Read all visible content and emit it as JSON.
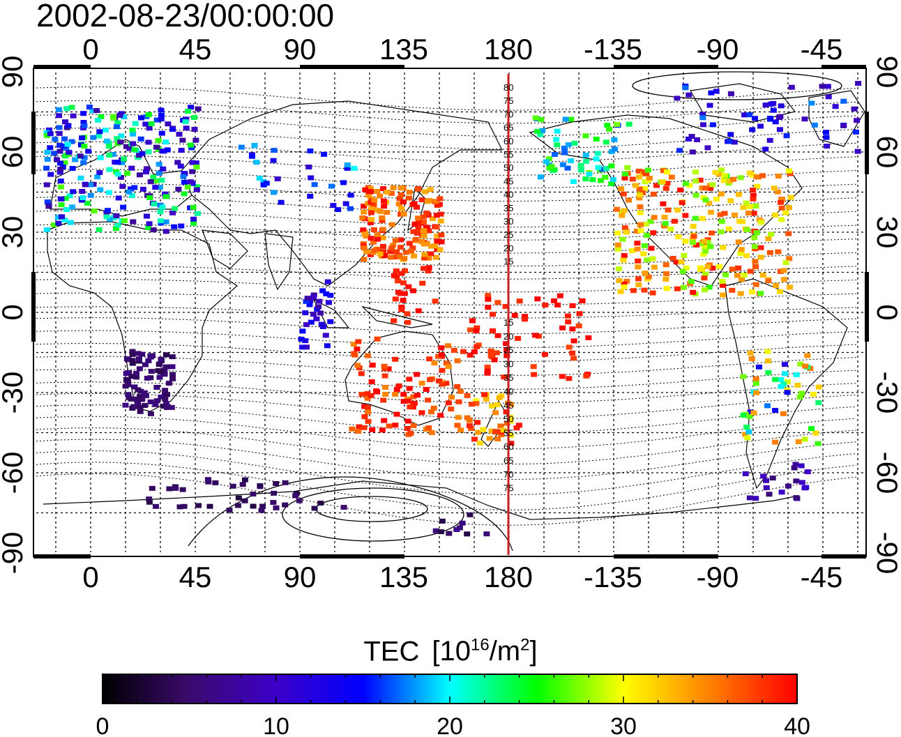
{
  "title": "2002-08-23/00:00:00",
  "map": {
    "top_lon_ticks": [
      "0",
      "45",
      "90",
      "135",
      "180",
      "-135",
      "-90",
      "-45"
    ],
    "bottom_lon_ticks": [
      "0",
      "45",
      "90",
      "135",
      "180",
      "-135",
      "-90",
      "-45"
    ],
    "lat_ticks": [
      "90",
      "60",
      "30",
      "0",
      "-30",
      "-60",
      "-90"
    ],
    "meridian_label": "180",
    "contour_labels_north": [
      "80",
      "75",
      "70",
      "65",
      "60",
      "55",
      "50",
      "45",
      "40",
      "35",
      "30",
      "25",
      "20",
      "15"
    ],
    "contour_labels_south": [
      "15",
      "20",
      "25",
      "30",
      "35",
      "40",
      "45",
      "50",
      "55",
      "60",
      "65",
      "70",
      "75"
    ]
  },
  "colorbar": {
    "title": "TEC",
    "unit_prefix": "[10",
    "unit_exp": "16",
    "unit_mid": "/m",
    "unit_exp2": "2",
    "unit_suffix": "]",
    "tick_labels": [
      "0",
      "10",
      "20",
      "30",
      "40"
    ],
    "range": [
      0,
      40
    ],
    "colors": [
      "#000000",
      "#3a0a6e",
      "#3c00c8",
      "#0000ff",
      "#00ffff",
      "#00ff00",
      "#ffff00",
      "#ff8000",
      "#ff0000"
    ]
  },
  "tec_regions": [
    {
      "name": "europe",
      "value": 17
    },
    {
      "name": "east-asia",
      "value": 37
    },
    {
      "name": "north-america",
      "value": 33
    },
    {
      "name": "australia",
      "value": 38
    },
    {
      "name": "south-africa",
      "value": 5
    },
    {
      "name": "antarctica",
      "value": 4
    },
    {
      "name": "canada-arctic",
      "value": 12
    }
  ]
}
